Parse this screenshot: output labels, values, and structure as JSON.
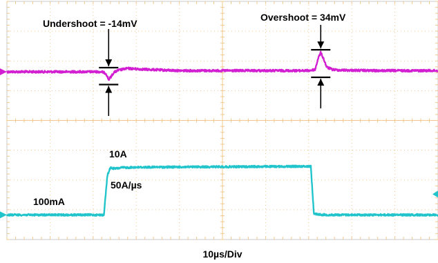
{
  "chart_data": {
    "type": "line",
    "title": "",
    "xlabel": "10µs/Div",
    "ylabel": "",
    "grid": true,
    "divisions": {
      "x": 10,
      "y": 8
    },
    "x_unit": "µs",
    "xlim": [
      0,
      100
    ],
    "series": [
      {
        "color": "#d21fd2",
        "y_unit": "mV",
        "baseline_mV": 0,
        "x": [
          0,
          22,
          23,
          23.6,
          24.2,
          24.8,
          26,
          28,
          30,
          33,
          36,
          40,
          50,
          60,
          70,
          71.5,
          72.2,
          72.8,
          73.4,
          74.2,
          75.5,
          77,
          85,
          100
        ],
        "y": [
          0,
          0,
          -3,
          -14,
          -8,
          -1,
          3,
          6,
          5,
          4,
          3,
          2,
          2,
          2,
          2,
          4,
          24,
          34,
          24,
          8,
          4,
          3,
          2,
          2
        ]
      },
      {
        "color": "#22c4cc",
        "y_unit": "A",
        "x": [
          0,
          22.5,
          23.3,
          24,
          25,
          26.5,
          30,
          40,
          50,
          60,
          70.5,
          71.2,
          72,
          73,
          75,
          85,
          100
        ],
        "y": [
          0.1,
          0.1,
          8.3,
          9.9,
          9.7,
          9.9,
          10,
          10.05,
          10.1,
          10.15,
          10.2,
          0.4,
          0.25,
          0.15,
          0.1,
          0.1,
          0.1
        ]
      }
    ],
    "annotations": {
      "undershoot": "Undershoot = -14mV",
      "overshoot": "Overshoot = 34mV",
      "high_current": "10A",
      "low_current": "100mA",
      "slew_rate": "50A/µs"
    }
  },
  "colors": {
    "grid": "#f0c88e",
    "border": "#c8c8c8",
    "marker": "#000000"
  }
}
